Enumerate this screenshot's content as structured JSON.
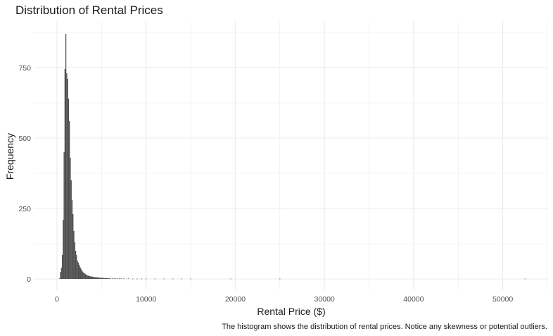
{
  "chart_data": {
    "type": "bar",
    "title": "Distribution of Rental Prices",
    "xlabel": "Rental Price ($)",
    "ylabel": "Frequency",
    "caption": "The histogram shows the distribution of rental prices. Notice any skewness or potential outliers.",
    "bar_color": "#4d4d4d",
    "grid_color": "#ebebeb",
    "xlim": [
      -2600,
      55000
    ],
    "ylim": [
      -40,
      915
    ],
    "xticks": [
      0,
      10000,
      20000,
      30000,
      40000,
      50000
    ],
    "yticks": [
      0,
      250,
      500,
      750
    ],
    "bin_width": 100,
    "x": [
      300,
      400,
      500,
      600,
      700,
      800,
      900,
      1000,
      1100,
      1200,
      1300,
      1400,
      1500,
      1600,
      1700,
      1800,
      1900,
      2000,
      2100,
      2200,
      2300,
      2400,
      2500,
      2600,
      2700,
      2800,
      2900,
      3000,
      3100,
      3200,
      3300,
      3400,
      3500,
      3600,
      3700,
      3800,
      3900,
      4000,
      4100,
      4200,
      4300,
      4400,
      4500,
      4600,
      4700,
      4800,
      4900,
      5000,
      5100,
      5200,
      5300,
      5400,
      5500,
      5600,
      5700,
      5800,
      5900,
      6000,
      6200,
      6400,
      6600,
      6800,
      7000,
      7200,
      7500,
      8000,
      8500,
      9000,
      9500,
      10000,
      11000,
      12000,
      13000,
      14000,
      15000,
      19500,
      25000,
      52500
    ],
    "values": [
      2,
      25,
      40,
      85,
      210,
      450,
      745,
      870,
      730,
      710,
      640,
      560,
      430,
      350,
      280,
      230,
      170,
      130,
      100,
      85,
      65,
      58,
      50,
      42,
      36,
      30,
      26,
      22,
      20,
      17,
      15,
      13,
      12,
      11,
      10,
      9,
      8,
      8,
      7,
      7,
      6,
      6,
      6,
      5,
      5,
      5,
      4,
      4,
      4,
      4,
      3,
      3,
      3,
      3,
      3,
      2,
      2,
      2,
      2,
      2,
      2,
      2,
      2,
      2,
      2,
      2,
      1,
      1,
      1,
      1,
      1,
      1,
      1,
      1,
      1,
      1,
      1,
      1
    ]
  }
}
